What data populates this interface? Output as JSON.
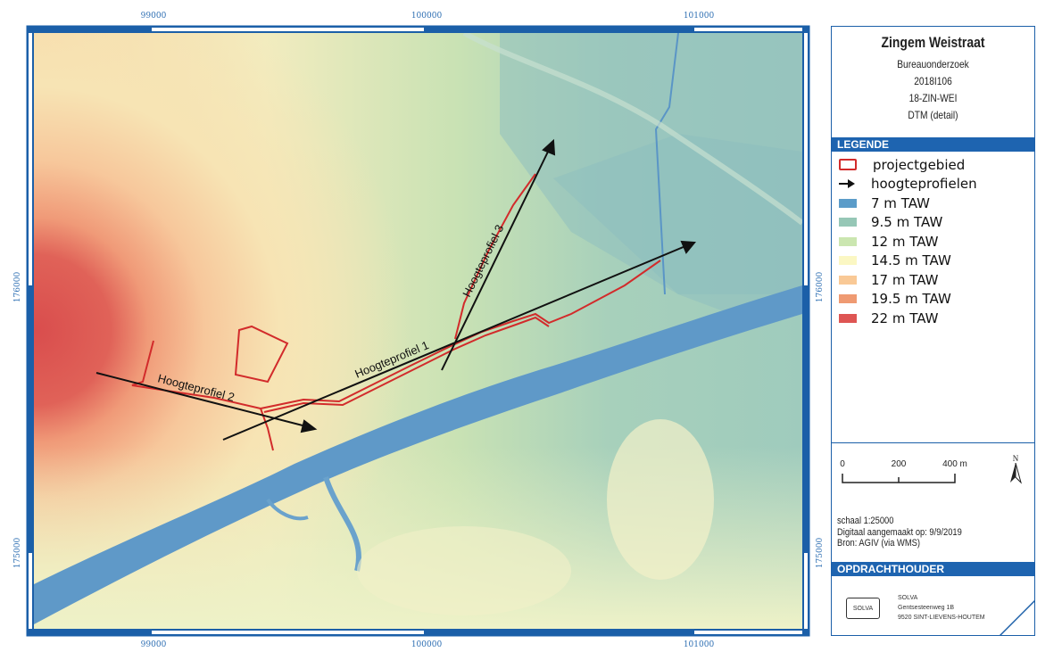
{
  "map": {
    "coords_x": [
      "99000",
      "100000",
      "101000"
    ],
    "coords_y": [
      "176000",
      "175000"
    ],
    "profile_labels": [
      "Hoogteprofiel 1",
      "Hoogteprofiel 2",
      "Hoogteprofiel 3"
    ]
  },
  "panel": {
    "title": "Zingem Weistraat",
    "subtitle1": "Bureauonderzoek",
    "subtitle2": "2018I106",
    "subtitle3": "18-ZIN-WEI",
    "subtitle4": "DTM (detail)",
    "legend_header": "LEGENDE",
    "legend_items": [
      {
        "label": "projectgebied",
        "kind": "outline",
        "color": "#d22b2b"
      },
      {
        "label": "hoogteprofielen",
        "kind": "arrow",
        "color": "#111111"
      },
      {
        "label": "7 m TAW",
        "kind": "fill",
        "color": "#5b9cc9"
      },
      {
        "label": "9.5 m TAW",
        "kind": "fill",
        "color": "#96c7b6"
      },
      {
        "label": "12 m TAW",
        "kind": "fill",
        "color": "#cbe6b0"
      },
      {
        "label": "14.5 m TAW",
        "kind": "fill",
        "color": "#fbf7c3"
      },
      {
        "label": "17 m TAW",
        "kind": "fill",
        "color": "#f9c996"
      },
      {
        "label": "19.5 m TAW",
        "kind": "fill",
        "color": "#ef9a72"
      },
      {
        "label": "22 m TAW",
        "kind": "fill",
        "color": "#de5553"
      }
    ],
    "scale_labels": [
      "0",
      "200",
      "400 m"
    ],
    "north": "N",
    "scale_text": "schaal  1:25000",
    "made_text": "Digitaal aangemaakt op: 9/9/2019",
    "source_text": "Bron: AGIV (via WMS)",
    "client_header": "OPDRACHTHOUDER",
    "client_logo": "SOLVA",
    "client_name": "SOLVA",
    "client_address1": "Gentsesteenweg 1B",
    "client_address2": "9520 SINT-LIEVENS-HOUTEM"
  }
}
